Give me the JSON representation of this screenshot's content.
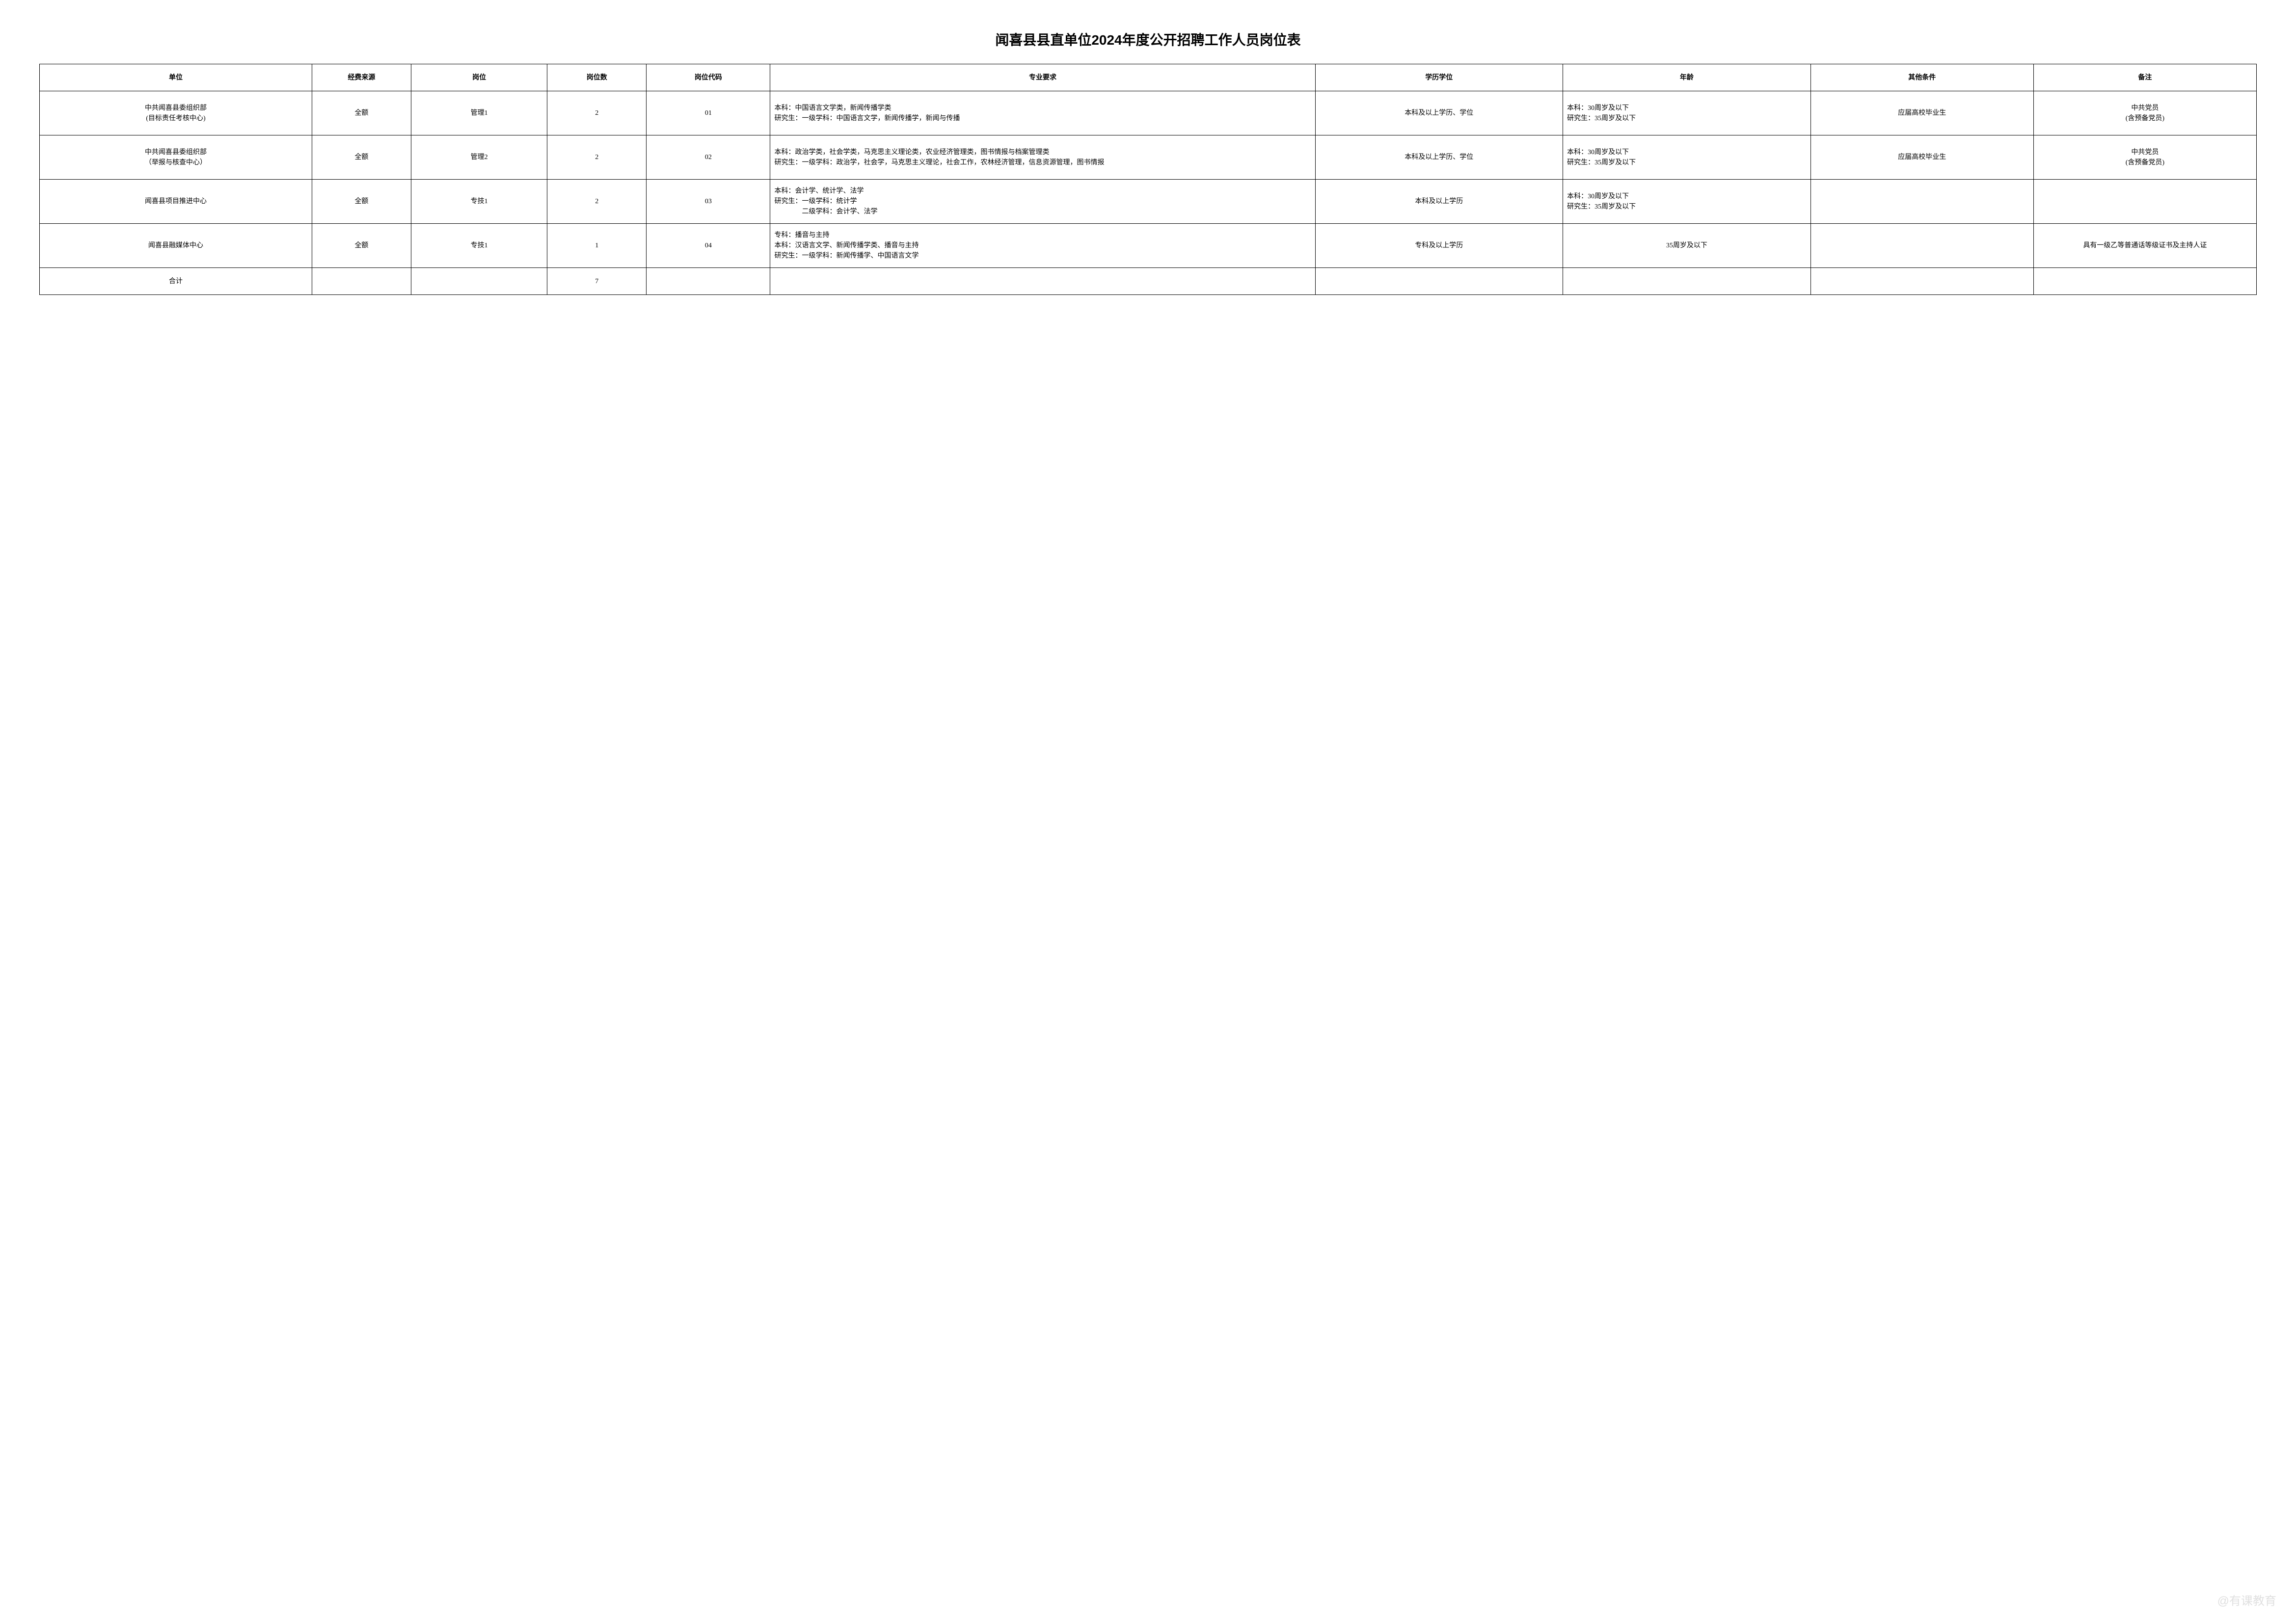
{
  "title": "闻喜县县直单位2024年度公开招聘工作人员岗位表",
  "headers": {
    "unit": "单位",
    "fund": "经费来源",
    "position": "岗位",
    "count": "岗位数",
    "code": "岗位代码",
    "major": "专业要求",
    "education": "学历学位",
    "age": "年龄",
    "other": "其他条件",
    "remark": "备注"
  },
  "rows": [
    {
      "unit": "中共闻喜县委组织部\n(目标责任考核中心)",
      "fund": "全额",
      "position": "管理1",
      "count": "2",
      "code": "01",
      "major": "本科：中国语言文学类，新闻传播学类\n研究生：一级学科：中国语言文学，新闻传播学，新闻与传播",
      "education": "本科及以上学历、学位",
      "age": "本科：30周岁及以下\n研究生：35周岁及以下",
      "other": "应届高校毕业生",
      "remark": "中共党员\n(含预备党员)"
    },
    {
      "unit": "中共闻喜县委组织部\n（举报与核查中心）",
      "fund": "全额",
      "position": "管理2",
      "count": "2",
      "code": "02",
      "major": "本科：政治学类，社会学类，马克思主义理论类，农业经济管理类，图书情报与档案管理类\n研究生：一级学科：政治学，社会学，马克思主义理论，社会工作，农林经济管理，信息资源管理，图书情报",
      "education": "本科及以上学历、学位",
      "age": "本科：30周岁及以下\n研究生：35周岁及以下",
      "other": "应届高校毕业生",
      "remark": "中共党员\n(含预备党员)"
    },
    {
      "unit": "闻喜县项目推进中心",
      "fund": "全额",
      "position": "专技1",
      "count": "2",
      "code": "03",
      "major": "本科：会计学、统计学、法学\n研究生：一级学科：统计学\n　　　　二级学科：会计学、法学",
      "education": "本科及以上学历",
      "age": "本科：30周岁及以下\n研究生：35周岁及以下",
      "other": "",
      "remark": ""
    },
    {
      "unit": "闻喜县融媒体中心",
      "fund": "全额",
      "position": "专技1",
      "count": "1",
      "code": "04",
      "major": "专科：播音与主持\n本科：汉语言文学、新闻传播学类、播音与主持\n研究生：一级学科：新闻传播学、中国语言文学",
      "education": "专科及以上学历",
      "age": "35周岁及以下",
      "other": "",
      "remark": "具有一级乙等普通话等级证书及主持人证"
    }
  ],
  "total": {
    "label": "合计",
    "count": "7"
  },
  "watermark": "@有课教育"
}
